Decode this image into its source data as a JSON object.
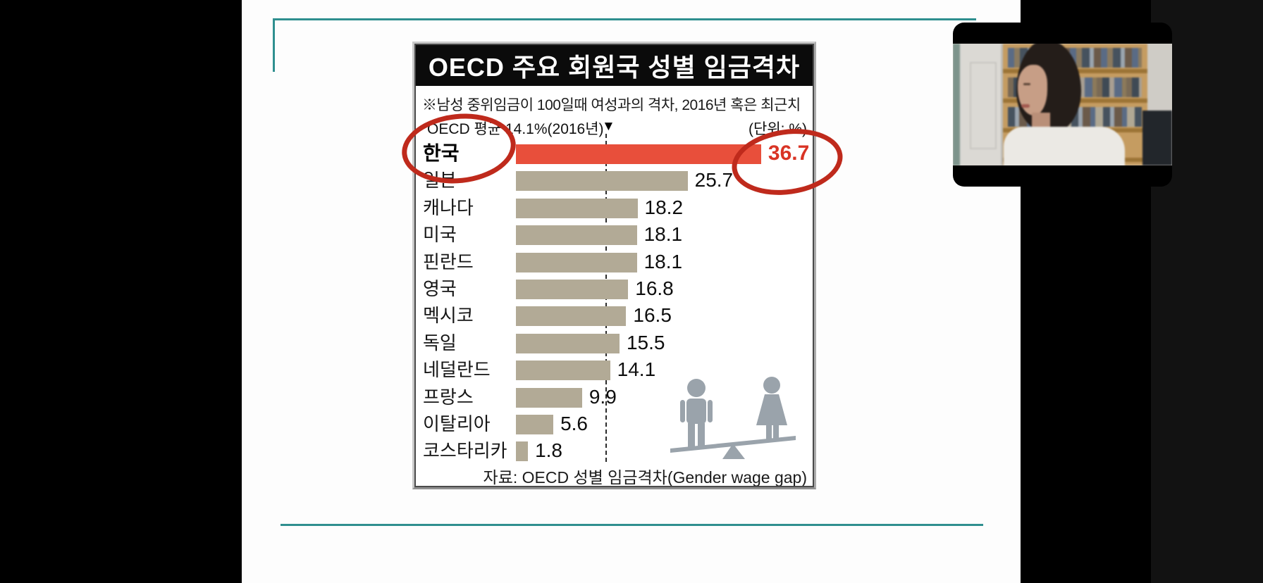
{
  "window": {
    "background_color": "#000000",
    "right_panel_color": "#121212",
    "slide_background": "#fdfdfd",
    "accent_teal": "#2f8f8f"
  },
  "chart": {
    "title": "OECD 주요 회원국 성별 임금격차",
    "note": "※남성 중위임금이 100일때 여성과의 격차, 2016년 혹은 최근치",
    "average_label": "OECD 평균 14.1%(2016년)",
    "average_marker": "▼",
    "unit_label": "(단위: %)",
    "source": "자료: OECD 성별 임금격차(Gender wage gap)",
    "highlight_circle_color": "#bf2a1c",
    "pictogram": "male-female-on-seesaw"
  },
  "chart_data": {
    "type": "bar",
    "orientation": "horizontal",
    "title": "OECD 주요 회원국 성별 임금격차",
    "subtitle": "※남성 중위임금이 100일때 여성과의 격차, 2016년 혹은 최근치",
    "unit": "%",
    "categories": [
      "한국",
      "일본",
      "캐나다",
      "미국",
      "핀란드",
      "영국",
      "멕시코",
      "독일",
      "네덜란드",
      "프랑스",
      "이탈리아",
      "코스타리카"
    ],
    "values": [
      36.7,
      25.7,
      18.2,
      18.1,
      18.1,
      16.8,
      16.5,
      15.5,
      14.1,
      9.9,
      5.6,
      1.8
    ],
    "xlim": [
      0,
      40
    ],
    "bar_color": "#b2aa96",
    "highlight_category": "한국",
    "highlight_color": "#e84f3b",
    "value_label_color": "#0e0e0e",
    "highlight_value_color": "#d93425",
    "reference_line": {
      "label": "OECD 평균 14.1%(2016년)",
      "value": 14.1,
      "style": "dashed"
    },
    "grid": false,
    "legend": false,
    "source": "자료: OECD 성별 임금격차(Gender wage gap)",
    "annotations": [
      "hand-drawn red ellipse around 한국 label",
      "hand-drawn red ellipse around value 36.7"
    ]
  },
  "webcam": {
    "description": "presenter video thumbnail"
  }
}
